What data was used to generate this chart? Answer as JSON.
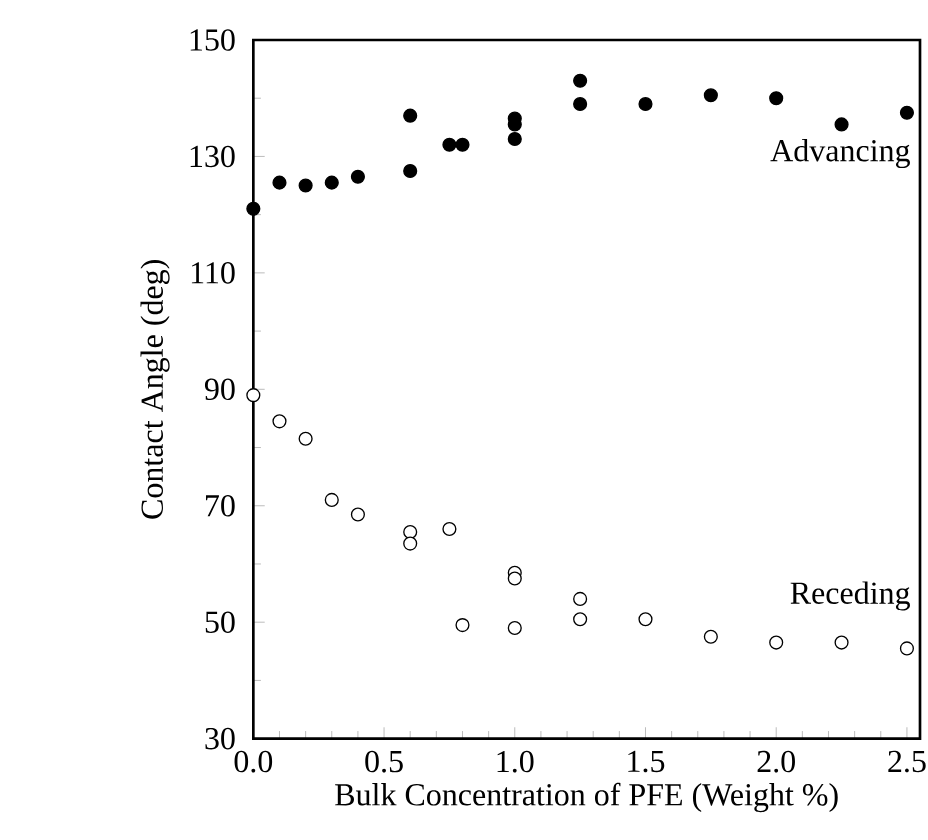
{
  "chart_data": {
    "type": "scatter",
    "xlabel": "Bulk Concentration of PFE (Weight %)",
    "ylabel": "Contact Angle (deg)",
    "xlim": [
      0,
      2.55
    ],
    "ylim": [
      30,
      150
    ],
    "xticks": [
      {
        "value": 0,
        "label": "0.0"
      },
      0.5,
      {
        "value": 1,
        "label": "1.0"
      },
      1.5,
      {
        "value": 2,
        "label": "2.0"
      },
      2.5
    ],
    "yticks": [
      30,
      50,
      70,
      90,
      110,
      130,
      150
    ],
    "grid": false,
    "legend": false,
    "series": [
      {
        "name": "Advancing",
        "color": "#000000",
        "x": [
          0,
          0.1,
          0.2,
          0.3,
          0.4,
          0.6,
          0.6,
          0.75,
          0.8,
          1.0,
          1.0,
          1.0,
          1.25,
          1.25,
          1.5,
          1.75,
          2.0,
          2.25,
          2.5
        ],
        "values": [
          121,
          125.5,
          125,
          125.5,
          126.5,
          127.5,
          137,
          132,
          132,
          133,
          135.5,
          136.5,
          139,
          143,
          139,
          140.5,
          140,
          135.5,
          137.5
        ]
      },
      {
        "name": "Receding",
        "color": "#ffffff",
        "x": [
          0,
          0.1,
          0.2,
          0.3,
          0.4,
          0.6,
          0.6,
          0.75,
          0.8,
          1.0,
          1.0,
          1.0,
          1.25,
          1.25,
          1.5,
          1.75,
          2.0,
          2.25,
          2.5
        ],
        "values": [
          89,
          84.5,
          81.5,
          71,
          68.5,
          65.5,
          63.5,
          66,
          49.5,
          58.5,
          57.5,
          49,
          54,
          50.5,
          50.5,
          47.5,
          46.5,
          46.5,
          45.5
        ]
      }
    ]
  }
}
